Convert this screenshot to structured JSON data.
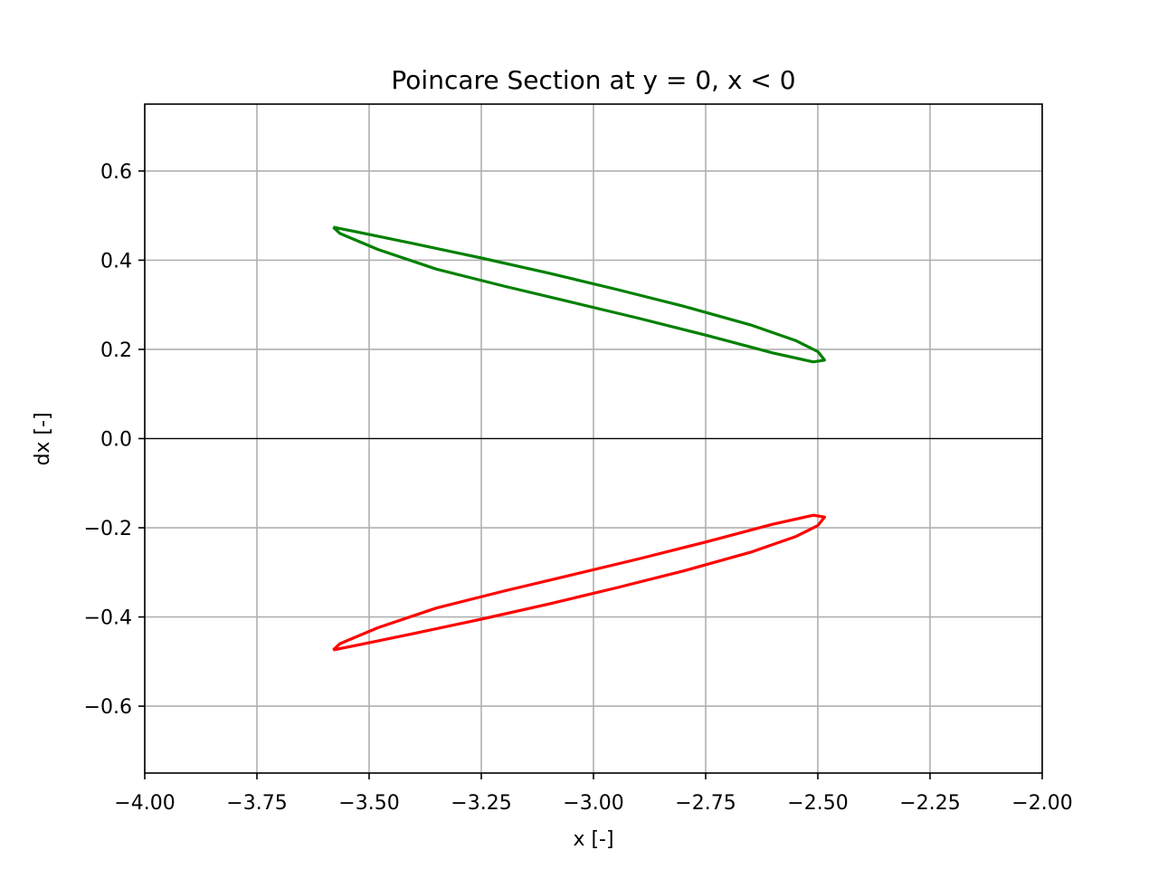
{
  "chart_data": {
    "type": "line",
    "title": "Poincare Section at y = 0, x < 0",
    "xlabel": "x [-]",
    "ylabel": "dx [-]",
    "xlim": [
      -4.0,
      -2.0
    ],
    "ylim": [
      -0.75,
      0.75
    ],
    "grid": true,
    "x_ticks": [
      -4.0,
      -3.75,
      -3.5,
      -3.25,
      -3.0,
      -2.75,
      -2.5,
      -2.25,
      -2.0
    ],
    "x_tick_labels": [
      "−4.00",
      "−3.75",
      "−3.50",
      "−3.25",
      "−3.00",
      "−2.75",
      "−2.50",
      "−2.25",
      "−2.00"
    ],
    "y_ticks": [
      0.6,
      0.4,
      0.2,
      0.0,
      -0.2,
      -0.4,
      -0.6
    ],
    "y_tick_labels": [
      "0.6",
      "0.4",
      "0.2",
      "0.0",
      "−0.2",
      "−0.4",
      "−0.6"
    ],
    "reference_line_y": 0.0,
    "series": [
      {
        "color": "#008000",
        "points": [
          [
            -3.58,
            0.474
          ],
          [
            -3.52,
            0.462
          ],
          [
            -3.4,
            0.437
          ],
          [
            -3.25,
            0.405
          ],
          [
            -3.1,
            0.371
          ],
          [
            -2.95,
            0.335
          ],
          [
            -2.8,
            0.297
          ],
          [
            -2.65,
            0.255
          ],
          [
            -2.55,
            0.22
          ],
          [
            -2.5,
            0.195
          ],
          [
            -2.485,
            0.176
          ],
          [
            -2.51,
            0.172
          ],
          [
            -2.6,
            0.192
          ],
          [
            -2.75,
            0.232
          ],
          [
            -2.9,
            0.27
          ],
          [
            -3.05,
            0.306
          ],
          [
            -3.2,
            0.342
          ],
          [
            -3.35,
            0.38
          ],
          [
            -3.48,
            0.424
          ],
          [
            -3.565,
            0.46
          ],
          [
            -3.58,
            0.474
          ]
        ]
      },
      {
        "color": "#ff0000",
        "points": [
          [
            -3.58,
            -0.474
          ],
          [
            -3.52,
            -0.462
          ],
          [
            -3.4,
            -0.437
          ],
          [
            -3.25,
            -0.405
          ],
          [
            -3.1,
            -0.371
          ],
          [
            -2.95,
            -0.335
          ],
          [
            -2.8,
            -0.297
          ],
          [
            -2.65,
            -0.255
          ],
          [
            -2.55,
            -0.22
          ],
          [
            -2.5,
            -0.195
          ],
          [
            -2.485,
            -0.176
          ],
          [
            -2.51,
            -0.172
          ],
          [
            -2.6,
            -0.192
          ],
          [
            -2.75,
            -0.232
          ],
          [
            -2.9,
            -0.27
          ],
          [
            -3.05,
            -0.306
          ],
          [
            -3.2,
            -0.342
          ],
          [
            -3.35,
            -0.38
          ],
          [
            -3.48,
            -0.424
          ],
          [
            -3.565,
            -0.46
          ],
          [
            -3.58,
            -0.474
          ]
        ]
      }
    ]
  }
}
